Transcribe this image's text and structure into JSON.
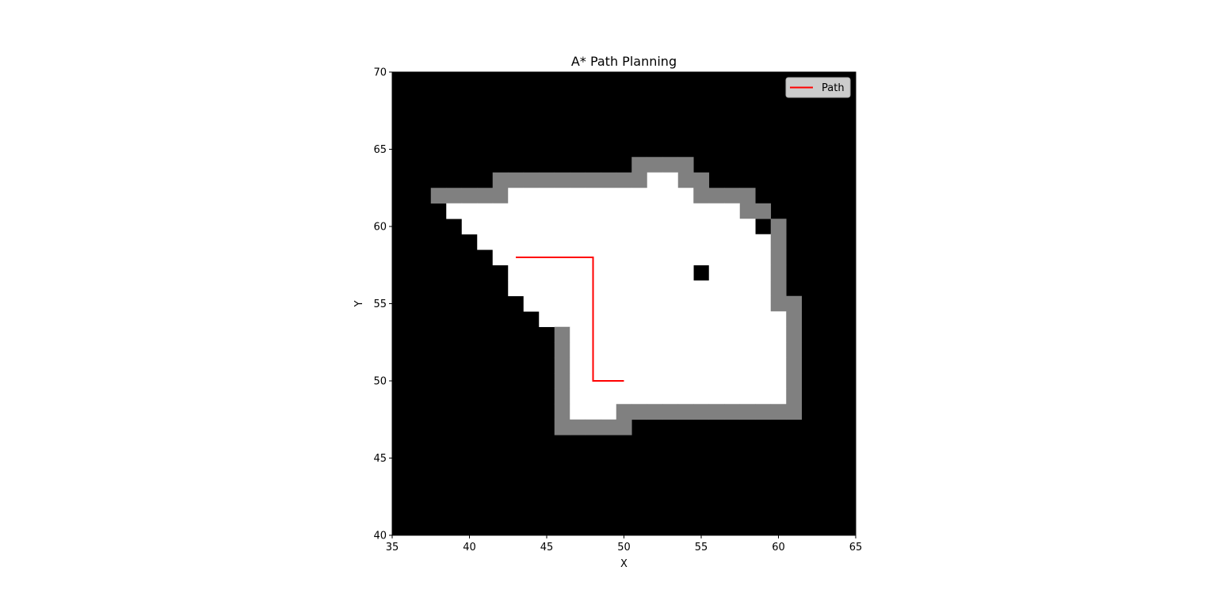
{
  "chart_data": {
    "type": "heatmap",
    "title": "A* Path Planning",
    "xlabel": "X",
    "ylabel": "Y",
    "xlim": [
      35,
      65
    ],
    "ylim": [
      40,
      70
    ],
    "xticks": [
      "35",
      "40",
      "45",
      "50",
      "55",
      "60",
      "65"
    ],
    "yticks": [
      "40",
      "45",
      "50",
      "55",
      "60",
      "65",
      "70"
    ],
    "grid": false,
    "legend": {
      "placement": "top-right",
      "entries": [
        "Path"
      ]
    },
    "colors": {
      "unknown": "#000000",
      "free": "#ffffff",
      "obstacle": "#808080",
      "path": "#ff0000"
    },
    "grid_map": {
      "description_rows": "rows listed from y=64 down to y=47; columns from x=38 to x=60; '.' unknown, 'F' free, 'O' obstacle",
      "y_start": 64,
      "x_start": 38,
      "rows": [
        ".............OOOO......",
        "....OOOOOOOOOOFFOO.....",
        "OOOOOFFFFFFFFFFFFOOOO..",
        ".FFFFFFFFFFFFFFFFFFFOO.",
        "..FFFFFFFFFFFFFFFFFFF.O",
        "...FFFFFFFFFFFFFFFFFFFO",
        "....FFFFFFFFFFFFFFFFFFO",
        ".....FFFFFFFFFFFF.FFFFO",
        ".....FFFFFFFFFFFFFFFFFO",
        "......FFFFFFFFFFFFFFFFOO",
        ".......FFFFFFFFFFFFFFFFO",
        "........OFFFFFFFFFFFFFFO",
        "........OFFFFFFFFFFFFFFO",
        "........OFFFFFFFFFFFFFFO",
        "........OFFFFFFFFFFFFFFO",
        "........OFFFFFFFFFFFFFFO",
        "........OFFFOOOOOOOOOOOO",
        "........OOOOO.........."
      ]
    },
    "series": [
      {
        "name": "Path",
        "x": [
          43,
          48,
          48,
          50
        ],
        "y": [
          58,
          58,
          50,
          50
        ]
      }
    ]
  }
}
